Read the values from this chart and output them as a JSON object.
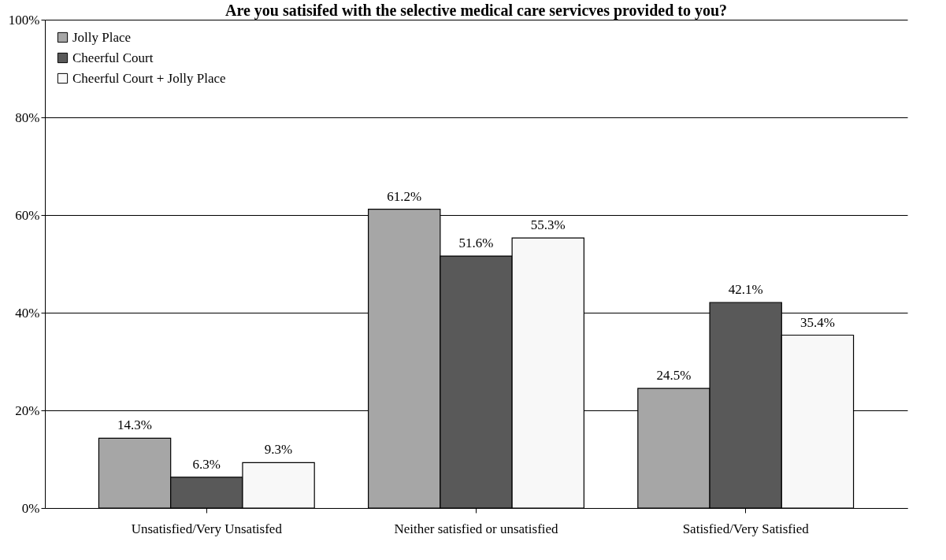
{
  "chart_data": {
    "type": "bar",
    "title": "Are you satisifed with the selective medical care servicves provided to you?",
    "categories": [
      "Unsatisfied/Very Unsatisfed",
      "Neither satisfied or unsatisfied",
      "Satisfied/Very Satisfied"
    ],
    "series": [
      {
        "name": "Jolly Place",
        "color": "#a6a6a6",
        "values": [
          14.3,
          61.2,
          24.5
        ],
        "value_labels": [
          "14.3%",
          "61.2%",
          "24.5%"
        ]
      },
      {
        "name": "Cheerful Court",
        "color": "#595959",
        "values": [
          6.3,
          51.6,
          42.1
        ],
        "value_labels": [
          "6.3%",
          "51.6%",
          "42.1%"
        ]
      },
      {
        "name": "Cheerful Court + Jolly Place",
        "color": "#f8f8f8",
        "values": [
          9.3,
          55.3,
          35.4
        ],
        "value_labels": [
          "9.3%",
          "55.3%",
          "35.4%"
        ]
      }
    ],
    "ylim": [
      0,
      100
    ],
    "yticks": [
      {
        "value": 0,
        "label": "0%"
      },
      {
        "value": 20,
        "label": "20%"
      },
      {
        "value": 40,
        "label": "40%"
      },
      {
        "value": 60,
        "label": "60%"
      },
      {
        "value": 80,
        "label": "80%"
      },
      {
        "value": 100,
        "label": "100%"
      }
    ],
    "grid": "y",
    "legend": "top left"
  }
}
